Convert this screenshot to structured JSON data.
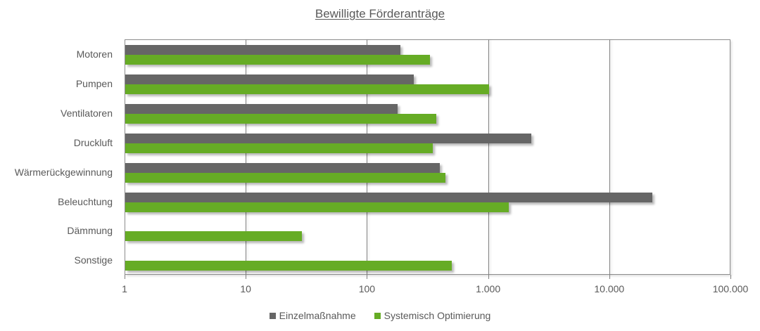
{
  "chart_data": {
    "type": "bar",
    "orientation": "horizontal",
    "title": "Bewilligte Förderanträge",
    "xlabel": "",
    "ylabel": "",
    "xscale": "log",
    "xlim": [
      1,
      100000
    ],
    "x_ticks": [
      "1",
      "10",
      "100",
      "1.000",
      "10.000",
      "100.000"
    ],
    "grid": true,
    "legend_position": "bottom",
    "categories": [
      "Motoren",
      "Pumpen",
      "Ventilatoren",
      "Druckluft",
      "Wärmerückgewinnung",
      "Beleuchtung",
      "Dämmung",
      "Sonstige"
    ],
    "series": [
      {
        "name": "Einzelmaßnahme",
        "color": "#666666",
        "values": [
          190,
          245,
          180,
          2270,
          400,
          22600,
          null,
          null
        ]
      },
      {
        "name": "Systemisch Optimierung",
        "color": "#66ac25",
        "values": [
          330,
          1020,
          375,
          350,
          445,
          1480,
          29,
          500
        ]
      }
    ]
  },
  "legend": {
    "items": [
      {
        "label": "Einzelmaßnahme",
        "color": "#666666"
      },
      {
        "label": "Systemisch Optimierung",
        "color": "#66ac25"
      }
    ]
  }
}
